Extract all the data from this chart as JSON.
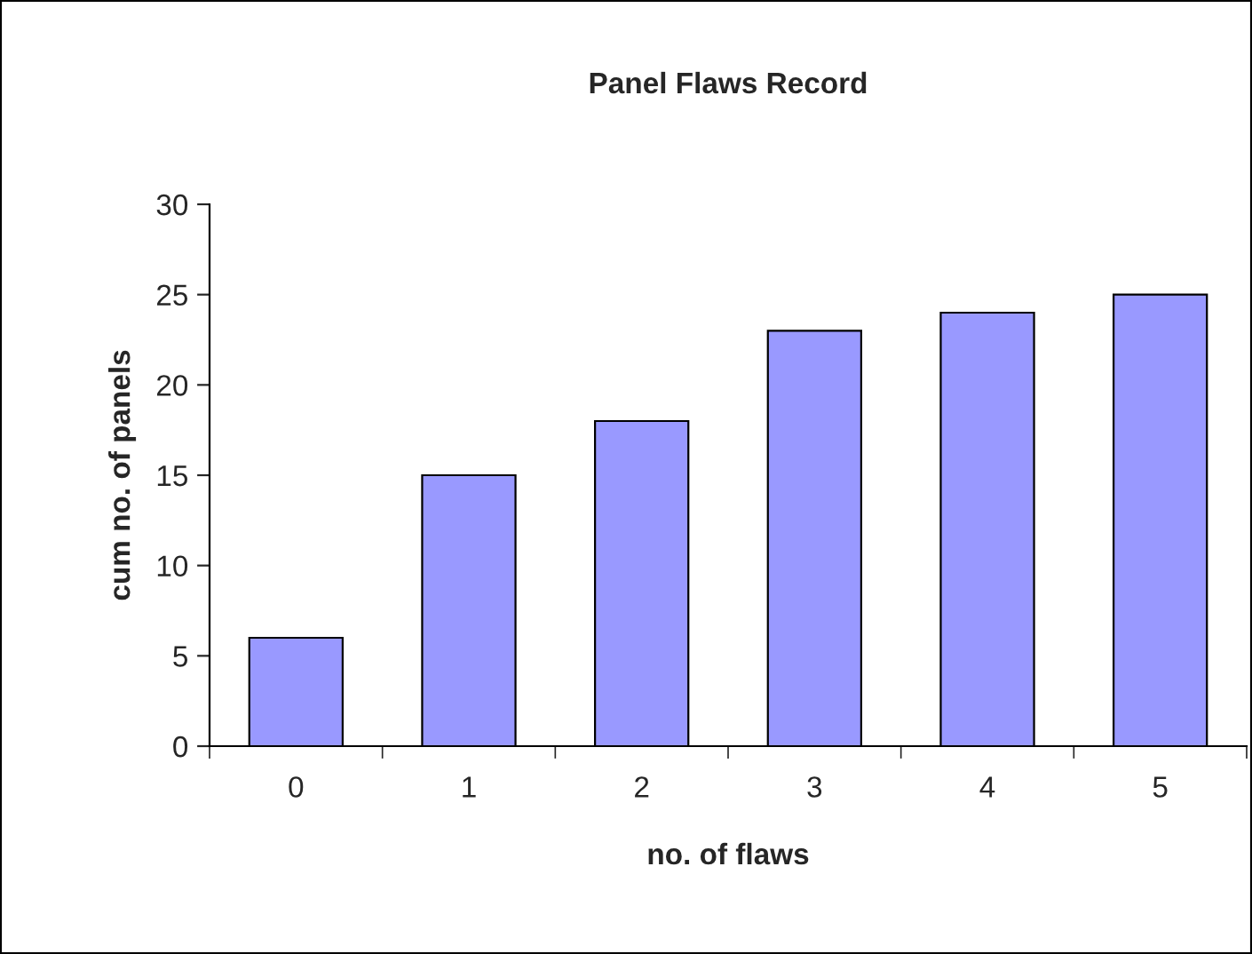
{
  "chart_data": {
    "type": "bar",
    "title": "Panel Flaws Record",
    "xlabel": "no. of flaws",
    "ylabel": "cum no. of panels",
    "categories": [
      "0",
      "1",
      "2",
      "3",
      "4",
      "5"
    ],
    "series": [
      {
        "color": "#9999ff",
        "values": [
          6,
          15,
          18,
          23,
          24,
          25
        ]
      }
    ],
    "ylim": [
      0,
      30
    ],
    "yticks": [
      0,
      5,
      10,
      15,
      20,
      25,
      30
    ]
  }
}
